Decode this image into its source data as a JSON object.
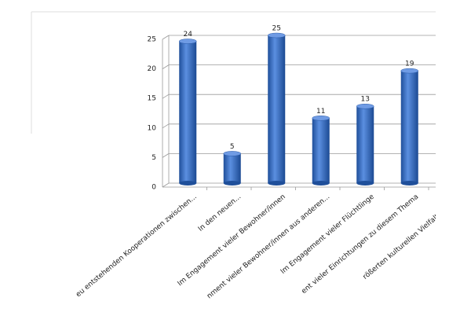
{
  "chart_data": {
    "type": "bar",
    "categories": [
      "eu entstehenden Kooperationen zwischen...",
      "In den neuen...",
      "Im Engagement vieler Bewohner/innen",
      "nment vieler Bewohner/innen aus anderen...",
      "Im Engagement vieler Flüchtlinge",
      "ent vieler Einrichtungen zu diesem Thema",
      "rößerten kulturellen Vielfalt des St..."
    ],
    "values": [
      24,
      5,
      25,
      11,
      13,
      19,
      null
    ],
    "color": "#3a6fc4",
    "ylim": [
      0,
      25
    ],
    "yticks": [
      0,
      5,
      10,
      15,
      20,
      25
    ],
    "grid": true
  }
}
